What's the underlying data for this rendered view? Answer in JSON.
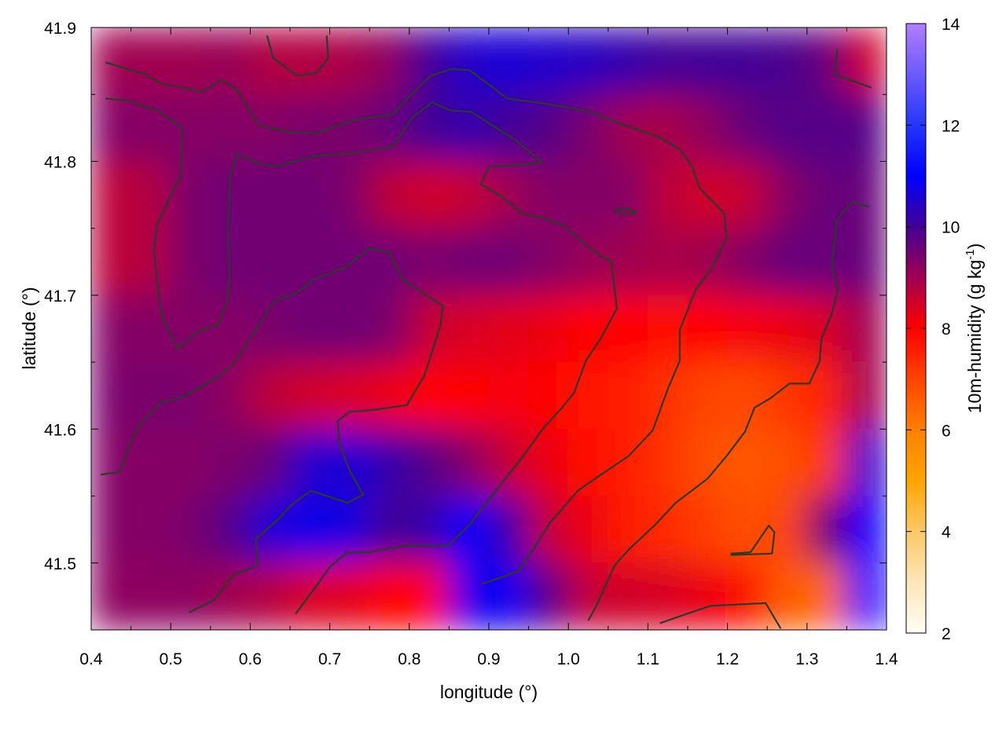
{
  "chart_data": {
    "type": "heatmap",
    "title": "",
    "xlabel": "longitude (°)",
    "ylabel": "latitude (°)",
    "xlim": [
      0.4,
      1.4
    ],
    "ylim": [
      41.45,
      41.9
    ],
    "xticks": [
      "0.4",
      "0.5",
      "0.6",
      "0.7",
      "0.8",
      "0.9",
      "1.0",
      "1.1",
      "1.2",
      "1.3",
      "1.4"
    ],
    "yticks": [
      "41.5",
      "41.6",
      "41.7",
      "41.8",
      "41.9"
    ],
    "colorbar": {
      "label": "10m-humidity (g kg",
      "label_sup": "-1",
      "label_end": ")",
      "range": [
        2,
        14
      ],
      "ticks": [
        "2",
        "4",
        "6",
        "8",
        "10",
        "12",
        "14"
      ],
      "colormap": [
        {
          "value": 2,
          "color": "#fffdf5"
        },
        {
          "value": 3,
          "color": "#fde6b8"
        },
        {
          "value": 4,
          "color": "#fbc865"
        },
        {
          "value": 5,
          "color": "#ffa500"
        },
        {
          "value": 6,
          "color": "#ff8000"
        },
        {
          "value": 7,
          "color": "#ff4400"
        },
        {
          "value": 8,
          "color": "#ff0000"
        },
        {
          "value": 9,
          "color": "#a00050"
        },
        {
          "value": 10,
          "color": "#420096"
        },
        {
          "value": 11,
          "color": "#0000ff"
        },
        {
          "value": 12,
          "color": "#2436ff"
        },
        {
          "value": 14,
          "color": "#b27eff"
        }
      ]
    },
    "grid": false,
    "lon": [
      0.425,
      0.475,
      0.525,
      0.575,
      0.625,
      0.675,
      0.725,
      0.775,
      0.825,
      0.875,
      0.925,
      0.975,
      1.025,
      1.075,
      1.125,
      1.175,
      1.225,
      1.275,
      1.325,
      1.375
    ],
    "lat": [
      41.875,
      41.825,
      41.775,
      41.725,
      41.675,
      41.625,
      41.575,
      41.525,
      41.475
    ],
    "values": [
      [
        9.0,
        9.0,
        9.0,
        9.1,
        8.8,
        8.8,
        8.9,
        9.2,
        10.0,
        10.5,
        10.6,
        10.5,
        10.4,
        10.2,
        10.0,
        10.0,
        10.0,
        9.9,
        9.6,
        8.5
      ],
      [
        9.3,
        9.3,
        9.3,
        9.3,
        9.3,
        9.4,
        9.4,
        9.6,
        10.0,
        10.2,
        10.0,
        9.8,
        9.4,
        9.0,
        8.9,
        9.2,
        9.6,
        9.8,
        9.8,
        9.8
      ],
      [
        8.7,
        8.8,
        9.4,
        9.5,
        9.5,
        9.5,
        9.4,
        8.7,
        8.5,
        8.6,
        9.0,
        9.3,
        9.3,
        9.3,
        8.7,
        8.5,
        8.6,
        9.3,
        9.6,
        9.6
      ],
      [
        8.7,
        8.8,
        9.4,
        9.5,
        9.5,
        9.5,
        9.5,
        9.5,
        9.4,
        9.5,
        9.5,
        9.3,
        9.1,
        9.0,
        8.9,
        9.0,
        9.3,
        9.6,
        9.6,
        9.6
      ],
      [
        9.3,
        9.3,
        9.3,
        9.3,
        9.4,
        9.5,
        9.5,
        9.4,
        8.6,
        8.4,
        8.3,
        8.2,
        8.0,
        8.0,
        7.9,
        8.0,
        8.1,
        8.2,
        8.4,
        9.0
      ],
      [
        9.4,
        9.4,
        9.4,
        9.2,
        8.7,
        8.5,
        8.4,
        8.2,
        8.0,
        8.0,
        8.1,
        8.0,
        7.7,
        7.6,
        7.3,
        7.0,
        6.9,
        7.2,
        7.5,
        9.0
      ],
      [
        9.3,
        9.3,
        9.3,
        9.4,
        9.6,
        10.5,
        10.6,
        10.2,
        9.8,
        9.3,
        8.6,
        8.2,
        7.8,
        7.6,
        7.2,
        6.8,
        6.7,
        6.8,
        7.2,
        10.5
      ],
      [
        9.3,
        9.3,
        9.4,
        9.8,
        10.6,
        10.8,
        10.7,
        10.0,
        10.2,
        11.0,
        10.2,
        8.6,
        8.2,
        7.6,
        7.4,
        7.1,
        6.8,
        7.0,
        9.5,
        11.0
      ],
      [
        9.2,
        9.2,
        9.2,
        9.0,
        8.8,
        8.4,
        8.3,
        8.0,
        8.0,
        10.8,
        10.9,
        9.8,
        8.6,
        8.5,
        8.4,
        8.2,
        7.8,
        6.6,
        6.4,
        11.0
      ]
    ],
    "contours": [
      {
        "lon": [
          0.418,
          0.468,
          0.488,
          0.54,
          0.564,
          0.582,
          0.611,
          0.646,
          0.683,
          0.73,
          0.779,
          0.804,
          0.827,
          0.854,
          0.876,
          0.923,
          0.972,
          1.022,
          1.066,
          1.115,
          1.14,
          1.155,
          1.165,
          1.196,
          1.199,
          1.18,
          1.16,
          1.14,
          1.14,
          1.125,
          1.106,
          1.076,
          1.041,
          1.012,
          0.977,
          0.962,
          0.938,
          0.89
        ],
        "lat": [
          41.874,
          41.865,
          41.858,
          41.852,
          41.861,
          41.854,
          41.827,
          41.822,
          41.821,
          41.831,
          41.835,
          41.851,
          41.864,
          41.869,
          41.868,
          41.847,
          41.843,
          41.838,
          41.828,
          41.818,
          41.809,
          41.797,
          41.78,
          41.761,
          41.743,
          41.72,
          41.704,
          41.674,
          41.651,
          41.63,
          41.599,
          41.58,
          41.566,
          41.554,
          41.53,
          41.516,
          41.494,
          41.484
        ]
      },
      {
        "lon": [
          0.418,
          0.448,
          0.483,
          0.515,
          0.513,
          0.483,
          0.479,
          0.485,
          0.491,
          0.509,
          0.534,
          0.56,
          0.572,
          0.574,
          0.572,
          0.575,
          0.584,
          0.607,
          0.631,
          0.681,
          0.73,
          0.779,
          0.804,
          0.829,
          0.852,
          0.878,
          0.933,
          0.967,
          0.928,
          0.9,
          0.89,
          0.918,
          0.942,
          0.972,
          0.995,
          1.019,
          1.041,
          1.054,
          1.061,
          1.041,
          1.022,
          1.007,
          0.992,
          0.969,
          0.942,
          0.913,
          0.89,
          0.878,
          0.849,
          0.795,
          0.75,
          0.722,
          0.7,
          0.681,
          0.657
        ],
        "lat": [
          41.847,
          41.845,
          41.838,
          41.825,
          41.79,
          41.753,
          41.734,
          41.699,
          41.681,
          41.66,
          41.673,
          41.678,
          41.698,
          41.715,
          41.75,
          41.789,
          41.806,
          41.799,
          41.796,
          41.804,
          41.806,
          41.811,
          41.833,
          41.844,
          41.838,
          41.837,
          41.816,
          41.799,
          41.797,
          41.796,
          41.783,
          41.773,
          41.761,
          41.757,
          41.752,
          41.739,
          41.729,
          41.726,
          41.69,
          41.668,
          41.651,
          41.627,
          41.616,
          41.601,
          41.579,
          41.557,
          41.54,
          41.53,
          41.513,
          41.513,
          41.508,
          41.508,
          41.497,
          41.481,
          41.462
        ]
      },
      {
        "lon": [
          0.412,
          0.436,
          0.443,
          0.458,
          0.488,
          0.511,
          0.537,
          0.562,
          0.582,
          0.607,
          0.631,
          0.656,
          0.681,
          0.72,
          0.75,
          0.775,
          0.791,
          0.819,
          0.842,
          0.839,
          0.819,
          0.797,
          0.75,
          0.725,
          0.71,
          0.712,
          0.725,
          0.742,
          0.722,
          0.676,
          0.651,
          0.636,
          0.607,
          0.609,
          0.579,
          0.554,
          0.523
        ],
        "lat": [
          41.566,
          41.568,
          41.58,
          41.601,
          41.62,
          41.623,
          41.631,
          41.64,
          41.651,
          41.674,
          41.696,
          41.701,
          41.712,
          41.721,
          41.735,
          41.732,
          41.712,
          41.701,
          41.692,
          41.677,
          41.64,
          41.618,
          41.614,
          41.613,
          41.606,
          41.589,
          41.569,
          41.551,
          41.545,
          41.554,
          41.543,
          41.533,
          41.518,
          41.498,
          41.491,
          41.472,
          41.463
        ]
      },
      {
        "lon": [
          1.025,
          1.036,
          1.058,
          1.076,
          1.11,
          1.135,
          1.175,
          1.199,
          1.222,
          1.234,
          1.254,
          1.278,
          1.303,
          1.316,
          1.318,
          1.331,
          1.339,
          1.331,
          1.338,
          1.358,
          1.378
        ],
        "lat": [
          41.457,
          41.469,
          41.498,
          41.51,
          41.529,
          41.545,
          41.563,
          41.58,
          41.598,
          41.616,
          41.623,
          41.634,
          41.634,
          41.651,
          41.667,
          41.686,
          41.704,
          41.721,
          41.757,
          41.77,
          41.766
        ]
      },
      {
        "lon": [
          1.204,
          1.229,
          1.252,
          1.259,
          1.256,
          1.204
        ],
        "lat": [
          41.507,
          41.508,
          41.528,
          41.523,
          41.507,
          41.506
        ]
      },
      {
        "lon": [
          1.115,
          1.149,
          1.179,
          1.248,
          1.267
        ],
        "lat": [
          41.455,
          41.462,
          41.468,
          41.47,
          41.451
        ]
      },
      {
        "lon": [
          0.621,
          0.629,
          0.659,
          0.683,
          0.698,
          0.696
        ],
        "lat": [
          41.894,
          41.877,
          41.864,
          41.866,
          41.877,
          41.894
        ]
      },
      {
        "lon": [
          1.338,
          1.335,
          1.381
        ],
        "lat": [
          41.884,
          41.865,
          41.855
        ]
      },
      {
        "lon": [
          1.058,
          1.071,
          1.086,
          1.068,
          1.058
        ],
        "lat": [
          41.763,
          41.765,
          41.762,
          41.76,
          41.763
        ]
      }
    ],
    "contour_color": "#2b3a2b"
  }
}
